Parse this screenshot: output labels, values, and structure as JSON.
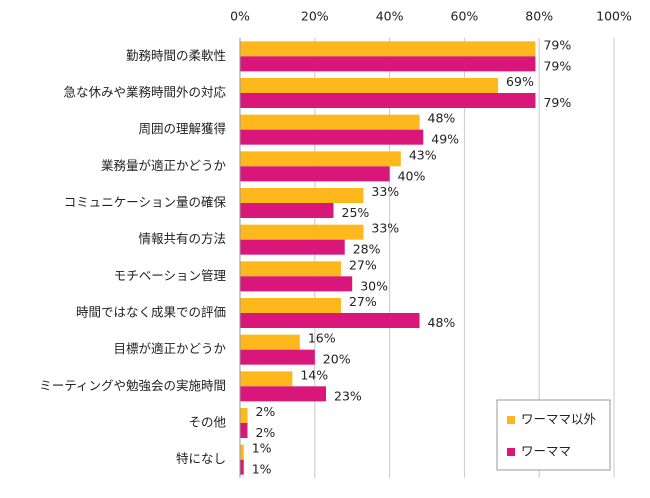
{
  "chart_data": {
    "type": "barh",
    "categories": [
      "勤務時間の柔軟性",
      "急な休みや業務時間外の対応",
      "周囲の理解獲得",
      "業務量が適正かどうか",
      "コミュニケーション量の確保",
      "情報共有の方法",
      "モチベーション管理",
      "時間ではなく成果での評価",
      "目標が適正かどうか",
      "ミーティングや勉強会の実施時間",
      "その他",
      "特になし"
    ],
    "series": [
      {
        "name": "ワーママ以外",
        "color": "#ffb81c",
        "values": [
          79,
          69,
          48,
          43,
          33,
          33,
          27,
          27,
          16,
          14,
          2,
          1
        ],
        "value_labels": [
          "79%",
          "69%",
          "48%",
          "43%",
          "33%",
          "33%",
          "27%",
          "27%",
          "16%",
          "14%",
          "2%",
          "1%"
        ]
      },
      {
        "name": "ワーママ",
        "color": "#d9177a",
        "values": [
          79,
          79,
          49,
          40,
          25,
          28,
          30,
          48,
          20,
          23,
          2,
          1
        ],
        "value_labels": [
          "79%",
          "79%",
          "49%",
          "40%",
          "25%",
          "28%",
          "30%",
          "48%",
          "20%",
          "23%",
          "2%",
          "1%"
        ]
      }
    ],
    "xlim": [
      0,
      100
    ],
    "xticks": [
      {
        "value": 0,
        "label": "0%"
      },
      {
        "value": 20,
        "label": "20%"
      },
      {
        "value": 40,
        "label": "40%"
      },
      {
        "value": 60,
        "label": "60%"
      },
      {
        "value": 80,
        "label": "80%"
      },
      {
        "value": 100,
        "label": "100%"
      }
    ],
    "grid": true,
    "legend": "lower right"
  }
}
